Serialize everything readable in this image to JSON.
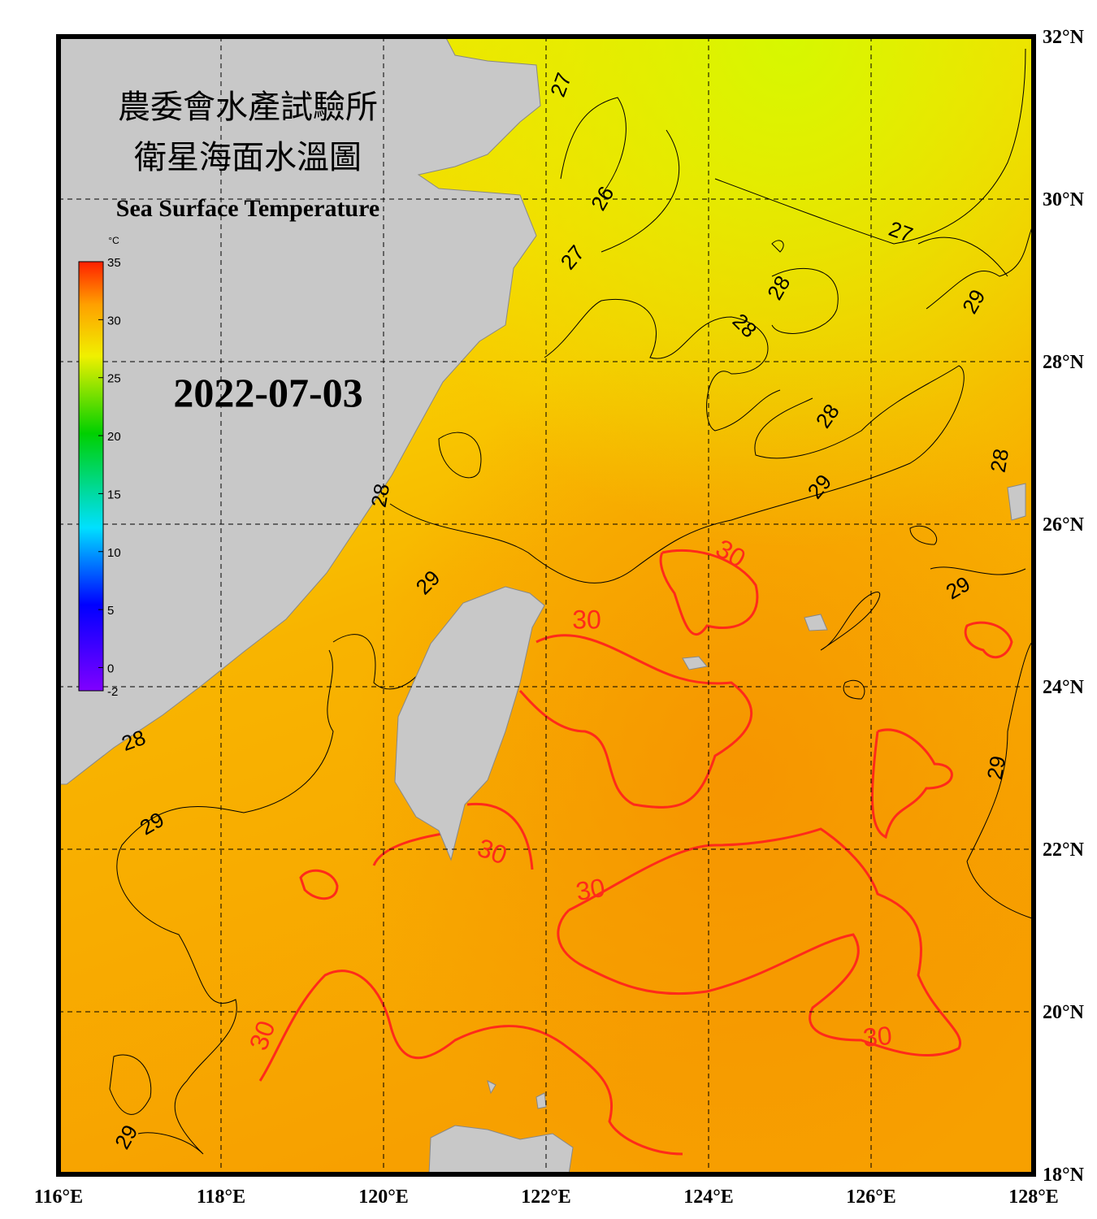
{
  "title_zh_1": "農委會水產試驗所",
  "title_zh_2": "衛星海面水溫圖",
  "title_en": "Sea Surface Temperature",
  "date": "2022-07-03",
  "colorbar": {
    "unit": "°C",
    "lim": [
      -2,
      35
    ],
    "ticks": [
      35,
      30,
      25,
      20,
      15,
      10,
      5,
      0,
      -2
    ]
  },
  "map": {
    "xlim": [
      116,
      128
    ],
    "ylim": [
      18,
      32
    ],
    "xticks": [
      {
        "value": 116,
        "label": "116°E"
      },
      {
        "value": 118,
        "label": "118°E"
      },
      {
        "value": 120,
        "label": "120°E"
      },
      {
        "value": 122,
        "label": "122°E"
      },
      {
        "value": 124,
        "label": "124°E"
      },
      {
        "value": 126,
        "label": "126°E"
      },
      {
        "value": 128,
        "label": "128°E"
      }
    ],
    "yticks": [
      {
        "value": 18,
        "label": "18°N"
      },
      {
        "value": 20,
        "label": "20°N"
      },
      {
        "value": 22,
        "label": "22°N"
      },
      {
        "value": 24,
        "label": "24°N"
      },
      {
        "value": 26,
        "label": "26°N"
      },
      {
        "value": 28,
        "label": "28°N"
      },
      {
        "value": 30,
        "label": "30°N"
      },
      {
        "value": 32,
        "label": "32°N"
      }
    ],
    "grid": true
  },
  "contour_labels": [
    {
      "value": 27,
      "color": "#000000"
    },
    {
      "value": 26,
      "color": "#000000"
    },
    {
      "value": 27,
      "color": "#000000"
    },
    {
      "value": 27,
      "color": "#000000"
    },
    {
      "value": 28,
      "color": "#000000"
    },
    {
      "value": 28,
      "color": "#000000"
    },
    {
      "value": 28,
      "color": "#000000"
    },
    {
      "value": 29,
      "color": "#000000"
    },
    {
      "value": 29,
      "color": "#000000"
    },
    {
      "value": 28,
      "color": "#000000"
    },
    {
      "value": 29,
      "color": "#000000"
    },
    {
      "value": 29,
      "color": "#000000"
    },
    {
      "value": 28,
      "color": "#000000"
    },
    {
      "value": 28,
      "color": "#000000"
    },
    {
      "value": 29,
      "color": "#000000"
    },
    {
      "value": 29,
      "color": "#000000"
    },
    {
      "value": 29,
      "color": "#000000"
    },
    {
      "value": 30,
      "color": "#ff2a1a"
    },
    {
      "value": 30,
      "color": "#ff2a1a"
    },
    {
      "value": 30,
      "color": "#ff2a1a"
    },
    {
      "value": 30,
      "color": "#ff2a1a"
    },
    {
      "value": 30,
      "color": "#ff2a1a"
    },
    {
      "value": 30,
      "color": "#ff2a1a"
    }
  ]
}
